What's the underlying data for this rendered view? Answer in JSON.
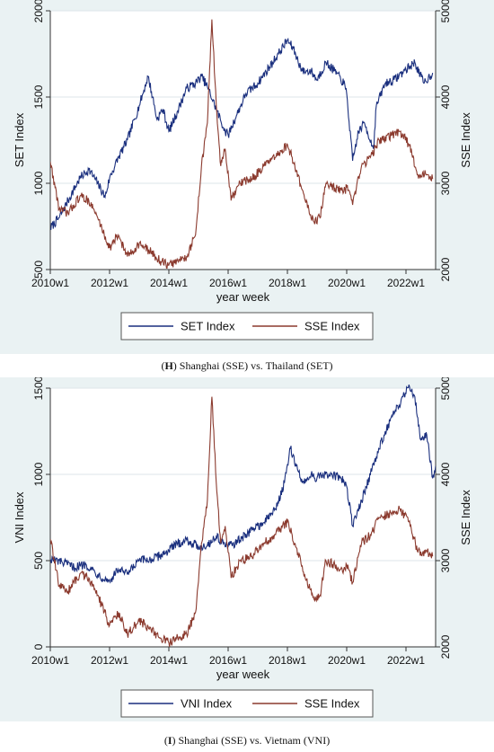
{
  "captions": {
    "h_letter": "H",
    "h_text": " Shanghai (SSE) vs. Thailand (SET)",
    "i_letter": "I",
    "i_text": " Shanghai (SSE) vs. Vietnam (VNI)"
  },
  "colors": {
    "left_series": "#1a2f7e",
    "sse_series": "#8b3a2e",
    "panel_bg": "#eaf2f3",
    "plot_bg": "#ffffff",
    "grid": "#dde6ea"
  },
  "chart_data": [
    {
      "type": "line",
      "title": "",
      "xlabel": "year week",
      "ylabel_left": "SET Index",
      "ylabel_right": "SSE Index",
      "x_ticks": [
        "2010w1",
        "2012w1",
        "2014w1",
        "2016w1",
        "2018w1",
        "2020w1",
        "2022w1"
      ],
      "xlim": [
        2010.0,
        2023.0
      ],
      "ylim_left": [
        500,
        2000
      ],
      "yticks_left": [
        500,
        1000,
        1500,
        2000
      ],
      "ylim_right": [
        2000,
        5000
      ],
      "yticks_right": [
        2000,
        3000,
        4000,
        5000
      ],
      "grid": true,
      "legend_position": "bottom",
      "series": [
        {
          "name": "SET Index",
          "axis": "left",
          "x": [
            2010.0,
            2010.3,
            2010.6,
            2011.0,
            2011.3,
            2011.6,
            2011.85,
            2012.0,
            2012.3,
            2012.6,
            2013.0,
            2013.3,
            2013.45,
            2013.6,
            2013.8,
            2014.0,
            2014.3,
            2014.6,
            2014.9,
            2015.1,
            2015.3,
            2015.6,
            2015.9,
            2016.0,
            2016.3,
            2016.6,
            2017.0,
            2017.5,
            2018.0,
            2018.2,
            2018.5,
            2018.8,
            2019.0,
            2019.3,
            2019.6,
            2019.9,
            2020.0,
            2020.2,
            2020.4,
            2020.6,
            2020.9,
            2021.0,
            2021.3,
            2021.6,
            2022.0,
            2022.3,
            2022.6,
            2022.9
          ],
          "values": [
            740,
            800,
            900,
            1030,
            1080,
            1000,
            920,
            1030,
            1150,
            1250,
            1450,
            1620,
            1500,
            1370,
            1430,
            1300,
            1420,
            1550,
            1580,
            1620,
            1560,
            1430,
            1300,
            1280,
            1400,
            1520,
            1580,
            1700,
            1830,
            1780,
            1650,
            1650,
            1600,
            1700,
            1650,
            1580,
            1520,
            1130,
            1300,
            1350,
            1200,
            1450,
            1580,
            1600,
            1660,
            1700,
            1580,
            1640
          ]
        },
        {
          "name": "SSE Index",
          "axis": "right",
          "x": [
            2010.0,
            2010.3,
            2010.6,
            2011.0,
            2011.3,
            2011.6,
            2012.0,
            2012.3,
            2012.6,
            2013.0,
            2013.4,
            2013.7,
            2014.0,
            2014.3,
            2014.6,
            2014.9,
            2015.1,
            2015.3,
            2015.45,
            2015.6,
            2015.75,
            2015.9,
            2016.1,
            2016.4,
            2016.8,
            2017.2,
            2017.6,
            2018.0,
            2018.3,
            2018.6,
            2018.9,
            2019.1,
            2019.3,
            2019.6,
            2019.9,
            2020.0,
            2020.2,
            2020.5,
            2020.8,
            2021.1,
            2021.5,
            2021.8,
            2022.1,
            2022.4,
            2022.7,
            2022.9
          ],
          "values": [
            3250,
            2700,
            2650,
            2850,
            2800,
            2600,
            2250,
            2400,
            2150,
            2300,
            2200,
            2100,
            2050,
            2100,
            2150,
            2400,
            3200,
            3700,
            4900,
            3900,
            3200,
            3400,
            2800,
            3000,
            3050,
            3200,
            3300,
            3450,
            3150,
            2800,
            2550,
            2600,
            3000,
            2950,
            2900,
            2950,
            2750,
            3200,
            3300,
            3500,
            3550,
            3600,
            3450,
            3100,
            3100,
            3050
          ]
        }
      ]
    },
    {
      "type": "line",
      "title": "",
      "xlabel": "year week",
      "ylabel_left": "VNI Index",
      "ylabel_right": "SSE Index",
      "x_ticks": [
        "2010w1",
        "2012w1",
        "2014w1",
        "2016w1",
        "2018w1",
        "2020w1",
        "2022w1"
      ],
      "xlim": [
        2010.0,
        2023.0
      ],
      "ylim_left": [
        0,
        1500
      ],
      "yticks_left": [
        0,
        500,
        1000,
        1500
      ],
      "ylim_right": [
        2000,
        5000
      ],
      "yticks_right": [
        2000,
        3000,
        4000,
        5000
      ],
      "grid": true,
      "legend_position": "bottom",
      "series": [
        {
          "name": "VNI Index",
          "axis": "left",
          "x": [
            2010.0,
            2010.4,
            2010.8,
            2011.2,
            2011.6,
            2012.0,
            2012.3,
            2012.6,
            2013.0,
            2013.5,
            2014.0,
            2014.3,
            2014.6,
            2015.0,
            2015.3,
            2015.6,
            2016.0,
            2016.4,
            2016.8,
            2017.2,
            2017.6,
            2017.9,
            2018.1,
            2018.3,
            2018.5,
            2018.8,
            2019.0,
            2019.4,
            2019.8,
            2020.0,
            2020.2,
            2020.5,
            2020.8,
            2021.0,
            2021.3,
            2021.6,
            2021.9,
            2022.1,
            2022.3,
            2022.5,
            2022.7,
            2022.9,
            2023.0
          ],
          "values": [
            510,
            490,
            460,
            480,
            420,
            380,
            450,
            420,
            500,
            510,
            560,
            600,
            620,
            580,
            590,
            640,
            580,
            620,
            680,
            720,
            800,
            950,
            1150,
            1050,
            950,
            1000,
            980,
            1000,
            980,
            930,
            700,
            850,
            1000,
            1100,
            1250,
            1350,
            1450,
            1520,
            1450,
            1200,
            1230,
            980,
            1050
          ]
        },
        {
          "name": "SSE Index",
          "axis": "right",
          "x": [
            2010.0,
            2010.3,
            2010.6,
            2011.0,
            2011.3,
            2011.6,
            2012.0,
            2012.3,
            2012.6,
            2013.0,
            2013.4,
            2013.7,
            2014.0,
            2014.3,
            2014.6,
            2014.9,
            2015.1,
            2015.3,
            2015.45,
            2015.6,
            2015.75,
            2015.9,
            2016.1,
            2016.4,
            2016.8,
            2017.2,
            2017.6,
            2018.0,
            2018.3,
            2018.6,
            2018.9,
            2019.1,
            2019.3,
            2019.6,
            2019.9,
            2020.0,
            2020.2,
            2020.5,
            2020.8,
            2021.1,
            2021.5,
            2021.8,
            2022.1,
            2022.4,
            2022.7,
            2022.9
          ],
          "values": [
            3250,
            2700,
            2650,
            2850,
            2800,
            2600,
            2250,
            2400,
            2150,
            2300,
            2200,
            2100,
            2050,
            2100,
            2150,
            2400,
            3200,
            3700,
            4900,
            3900,
            3200,
            3400,
            2800,
            3000,
            3050,
            3200,
            3300,
            3450,
            3150,
            2800,
            2550,
            2600,
            3000,
            2950,
            2900,
            2950,
            2750,
            3200,
            3300,
            3500,
            3550,
            3600,
            3450,
            3100,
            3100,
            3050
          ]
        }
      ]
    }
  ]
}
